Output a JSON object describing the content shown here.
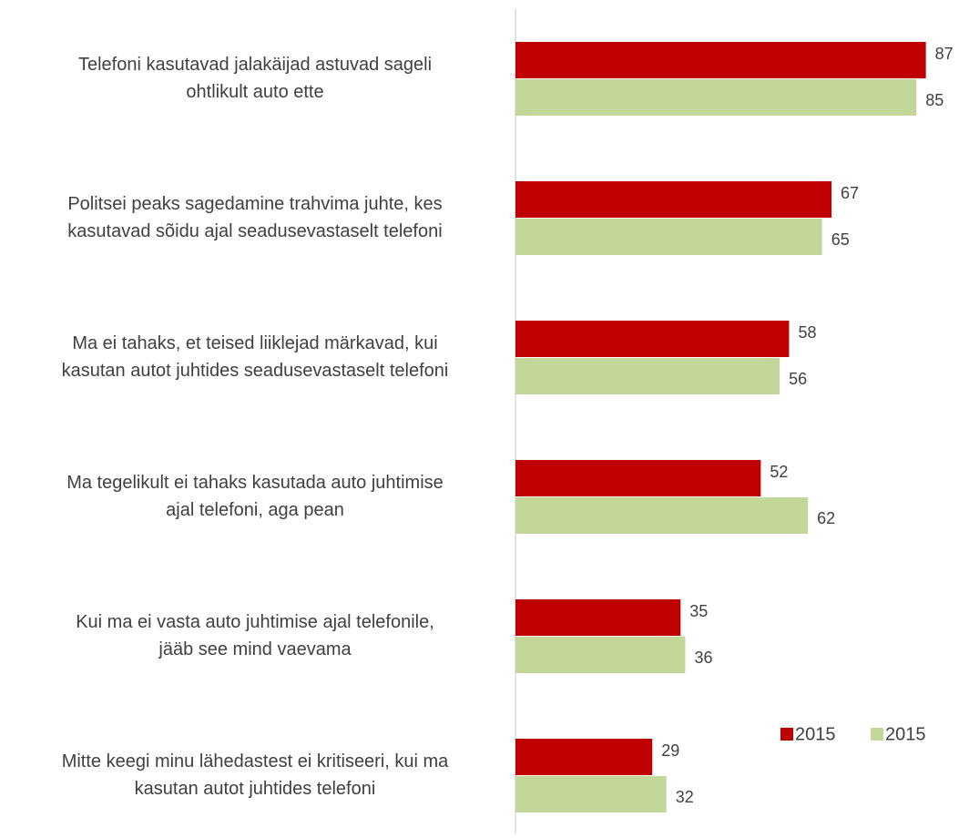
{
  "chart_data": {
    "type": "barh",
    "categories": [
      "Telefoni kasutavad jalakäijad astuvad sageli\nohtlikult auto ette",
      "Politsei peaks sagedamine trahvima juhte, kes\nkasutavad sõidu ajal seadusevastaselt telefoni",
      "Ma ei tahaks, et teised liiklejad märkavad, kui\nkasutan autot juhtides seadusevastaselt telefoni",
      "Ma tegelikult ei tahaks kasutada auto juhtimise\najal telefoni, aga pean",
      "Kui ma ei vasta auto juhtimise ajal telefonile,\njääb see mind vaevama",
      "Mitte keegi minu lähedastest ei kritiseeri, kui ma\nkasutan autot juhtides telefoni"
    ],
    "series": [
      {
        "name": "2015",
        "color": "#c00000",
        "values": [
          87,
          67,
          58,
          52,
          35,
          29
        ]
      },
      {
        "name": "2015",
        "color": "#c4d79b",
        "values": [
          85,
          65,
          56,
          62,
          36,
          32
        ]
      }
    ],
    "legend": "lower right"
  }
}
